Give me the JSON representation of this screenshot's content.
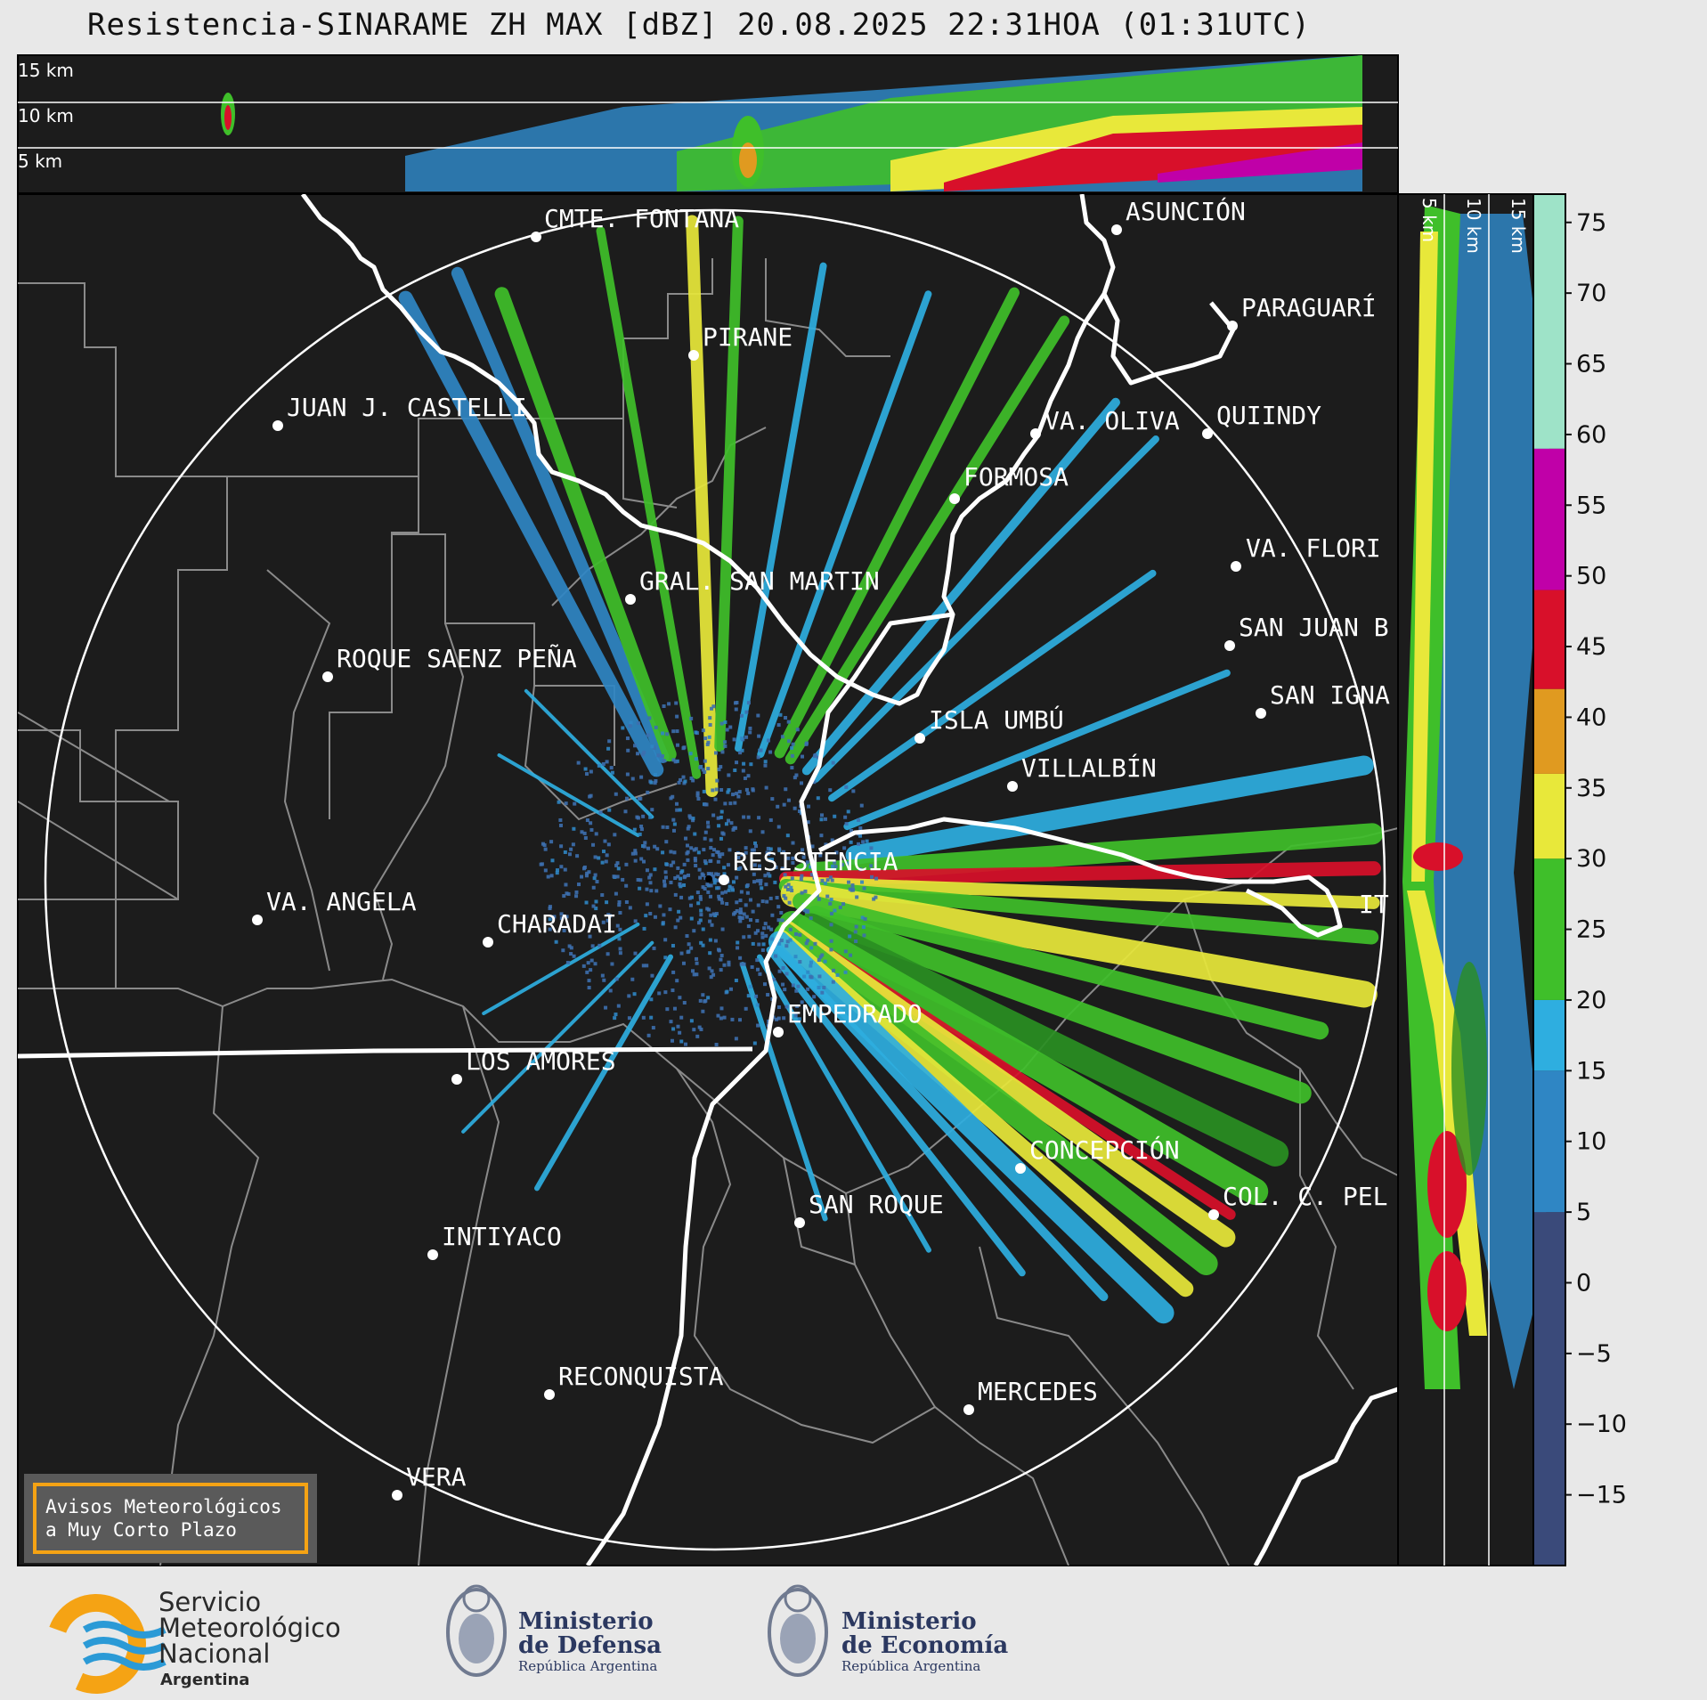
{
  "title": "Resistencia-SINARAME ZH MAX [dBZ] 20.08.2025 22:31HOA (01:31UTC)",
  "top_panel": {
    "height_labels": [
      "15 km",
      "10 km",
      "5 km"
    ]
  },
  "side_panel": {
    "height_labels": [
      "5 km",
      "10 km",
      "15 km"
    ]
  },
  "places": [
    {
      "name": "CMTE. FONTANA"
    },
    {
      "name": "ASUNCIÓN"
    },
    {
      "name": "PARAGUARÍ"
    },
    {
      "name": "PIRANE"
    },
    {
      "name": "JUAN J. CASTELLI"
    },
    {
      "name": "VA. OLIVA"
    },
    {
      "name": "QUIINDY"
    },
    {
      "name": "FORMOSA"
    },
    {
      "name": "VA. FLORI"
    },
    {
      "name": "GRAL. SAN MARTIN"
    },
    {
      "name": "SAN JUAN B"
    },
    {
      "name": "ROQUE SAENZ PEÑA"
    },
    {
      "name": "SAN IGNA"
    },
    {
      "name": "ISLA UMBÚ"
    },
    {
      "name": "VILLALBÍN"
    },
    {
      "name": "RESISTENCIA"
    },
    {
      "name": "VA. ANGELA"
    },
    {
      "name": "CHARADAI"
    },
    {
      "name": "IT"
    },
    {
      "name": "EMPEDRADO"
    },
    {
      "name": "LOS AMORES"
    },
    {
      "name": "CONCEPCIÓN"
    },
    {
      "name": "SAN ROQUE"
    },
    {
      "name": "COL. C. PEL"
    },
    {
      "name": "INTIYACO"
    },
    {
      "name": "RECONQUISTA"
    },
    {
      "name": "MERCEDES"
    },
    {
      "name": "VERA"
    }
  ],
  "colorbar": {
    "unit": "dBZ",
    "ticks": [
      "75",
      "70",
      "65",
      "60",
      "55",
      "50",
      "45",
      "40",
      "35",
      "30",
      "25",
      "20",
      "15",
      "10",
      "5",
      "0",
      "−5",
      "−10",
      "−15"
    ],
    "range": [
      -20,
      77
    ],
    "colors": [
      {
        "from": -20,
        "to": 5,
        "color": "#3a4a7a"
      },
      {
        "from": 5,
        "to": 15,
        "color": "#2f86c4"
      },
      {
        "from": 15,
        "to": 20,
        "color": "#2eaee0"
      },
      {
        "from": 20,
        "to": 30,
        "color": "#3fbf2a"
      },
      {
        "from": 30,
        "to": 36,
        "color": "#e8e83a"
      },
      {
        "from": 36,
        "to": 42,
        "color": "#e09a20"
      },
      {
        "from": 42,
        "to": 49,
        "color": "#d8102a"
      },
      {
        "from": 49,
        "to": 59,
        "color": "#c000a8"
      },
      {
        "from": 59,
        "to": 77,
        "color": "#9ee3c8"
      }
    ]
  },
  "aviso": {
    "line1": "Avisos Meteorológicos",
    "line2": "a Muy Corto Plazo"
  },
  "logos": {
    "smn": [
      "Servicio",
      "Meteorológico",
      "Nacional",
      "Argentina"
    ],
    "defensa": [
      "Ministerio",
      "de Defensa",
      "República Argentina"
    ],
    "economia": [
      "Ministerio",
      "de Economía",
      "República Argentina"
    ]
  }
}
